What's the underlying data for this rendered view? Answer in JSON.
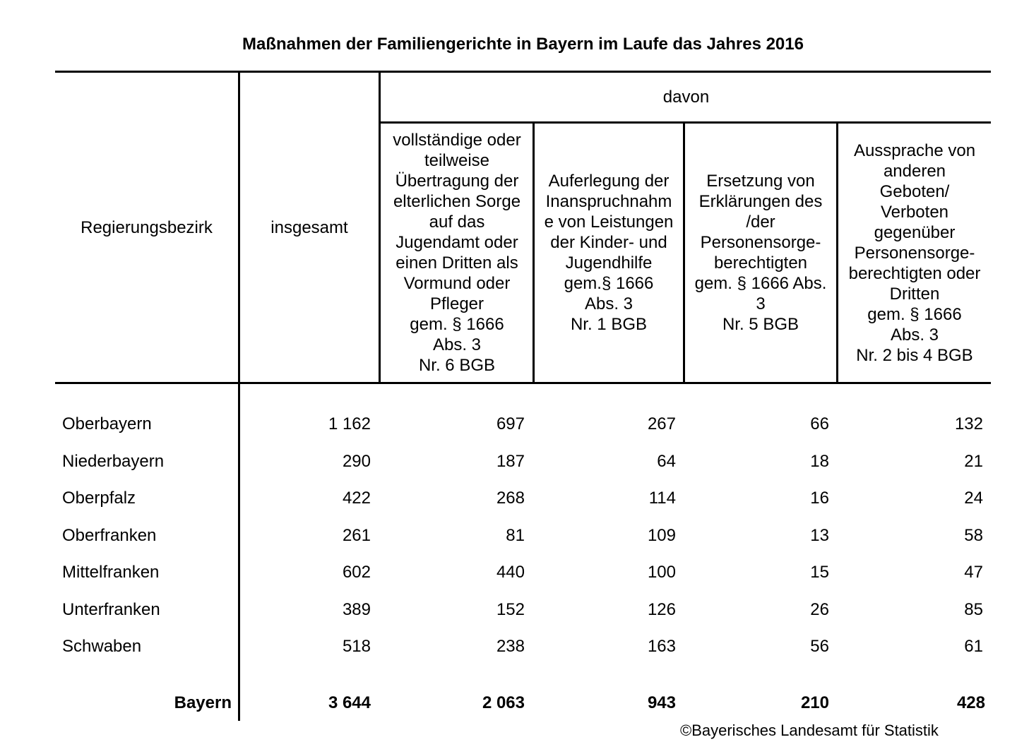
{
  "title": "Maßnahmen der Familiengerichte in Bayern im Laufe das Jahres 2016",
  "table": {
    "col_headers": {
      "region": "Regierungsbezirk",
      "total": "insgesamt",
      "davon": "davon",
      "sub": [
        "vollständige oder\nteilweise\nÜbertragung der\nelterlichen Sorge\nauf das\nJugendamt oder\neinen Dritten als\nVormund oder\nPfleger\ngem. § 1666\nAbs. 3\nNr. 6 BGB",
        "Auferlegung der\nInanspruchnahm\ne von Leistungen\nder Kinder- und\nJugendhilfe\ngem.§ 1666\nAbs. 3\nNr. 1 BGB",
        "Ersetzung von\nErklärungen des\n/der\nPersonensorge-\nberechtigten\ngem. § 1666 Abs.\n3\nNr. 5 BGB",
        "Aussprache von\nanderen\nGeboten/\nVerboten\ngegenüber\nPersonensorge-\nberechtigten oder\nDritten\ngem. § 1666\nAbs. 3\nNr. 2 bis 4 BGB"
      ]
    },
    "rows": [
      {
        "region": "Oberbayern",
        "values": [
          "1 162",
          "697",
          "267",
          "66",
          "132"
        ]
      },
      {
        "region": "Niederbayern",
        "values": [
          "290",
          "187",
          "64",
          "18",
          "21"
        ]
      },
      {
        "region": "Oberpfalz",
        "values": [
          "422",
          "268",
          "114",
          "16",
          "24"
        ]
      },
      {
        "region": "Oberfranken",
        "values": [
          "261",
          "81",
          "109",
          "13",
          "58"
        ]
      },
      {
        "region": "Mittelfranken",
        "values": [
          "602",
          "440",
          "100",
          "15",
          "47"
        ]
      },
      {
        "region": "Unterfranken",
        "values": [
          "389",
          "152",
          "126",
          "26",
          "85"
        ]
      },
      {
        "region": "Schwaben",
        "values": [
          "518",
          "238",
          "163",
          "56",
          "61"
        ]
      }
    ],
    "total_row": {
      "region": "Bayern",
      "values": [
        "3 644",
        "2 063",
        "943",
        "210",
        "428"
      ]
    }
  },
  "footer": "©Bayerisches Landesamt für Statistik",
  "colors": {
    "text": "#000000",
    "background": "#ffffff",
    "rule": "#000000"
  }
}
